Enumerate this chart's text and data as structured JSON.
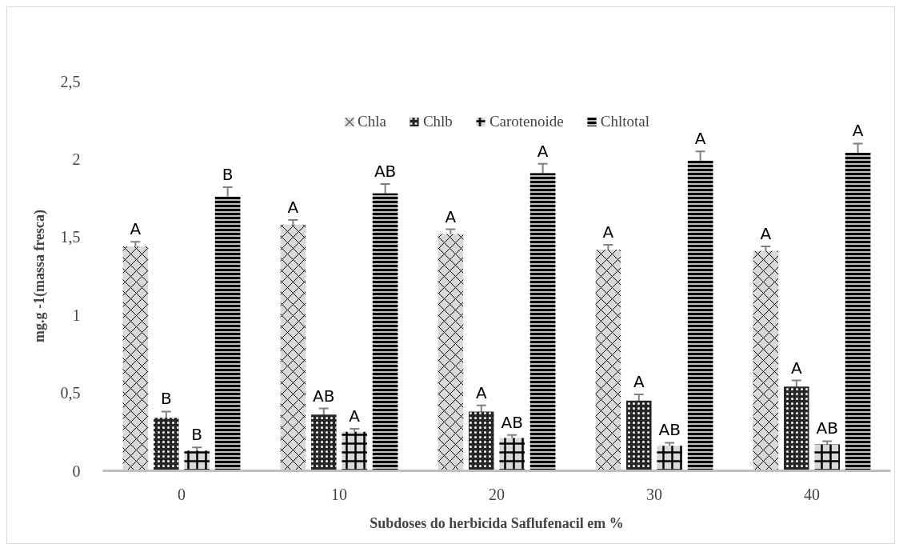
{
  "chart_data": {
    "type": "bar",
    "xlabel": "Subdoses do herbicida Saflufenacil em %",
    "ylabel": "mg.g -1(massa fresca)",
    "categories": [
      "0",
      "10",
      "20",
      "30",
      "40"
    ],
    "series": [
      {
        "name": "Chla",
        "color": "#d9d9d9",
        "values": [
          1.44,
          1.58,
          1.52,
          1.42,
          1.41
        ],
        "errors": [
          0.03,
          0.03,
          0.03,
          0.03,
          0.03
        ],
        "value_labels": [
          "A",
          "A",
          "A",
          "A",
          "A"
        ]
      },
      {
        "name": "Chlb",
        "color": "#262626",
        "values": [
          0.34,
          0.36,
          0.38,
          0.45,
          0.54
        ],
        "errors": [
          0.04,
          0.04,
          0.04,
          0.04,
          0.04
        ],
        "value_labels": [
          "B",
          "AB",
          "A",
          "A",
          "A"
        ]
      },
      {
        "name": "Carotenoide",
        "color": "#d9d9d9",
        "values": [
          0.13,
          0.25,
          0.21,
          0.16,
          0.17
        ],
        "errors": [
          0.02,
          0.02,
          0.02,
          0.02,
          0.02
        ],
        "value_labels": [
          "B",
          "A",
          "AB",
          "AB",
          "AB"
        ]
      },
      {
        "name": "Chltotal",
        "color": "#bfbfbf",
        "values": [
          1.76,
          1.78,
          1.91,
          1.99,
          2.04
        ],
        "errors": [
          0.06,
          0.06,
          0.06,
          0.06,
          0.06
        ],
        "value_labels": [
          "B",
          "AB",
          "A",
          "A",
          "A"
        ]
      }
    ],
    "ylim": [
      0,
      2.5
    ],
    "yticks": [
      0,
      {
        "value": 0.5,
        "label": "0,5"
      },
      1,
      {
        "value": 1.5,
        "label": "1,5"
      },
      2,
      {
        "value": 2.5,
        "label": "2,5"
      }
    ],
    "legend": "top"
  }
}
